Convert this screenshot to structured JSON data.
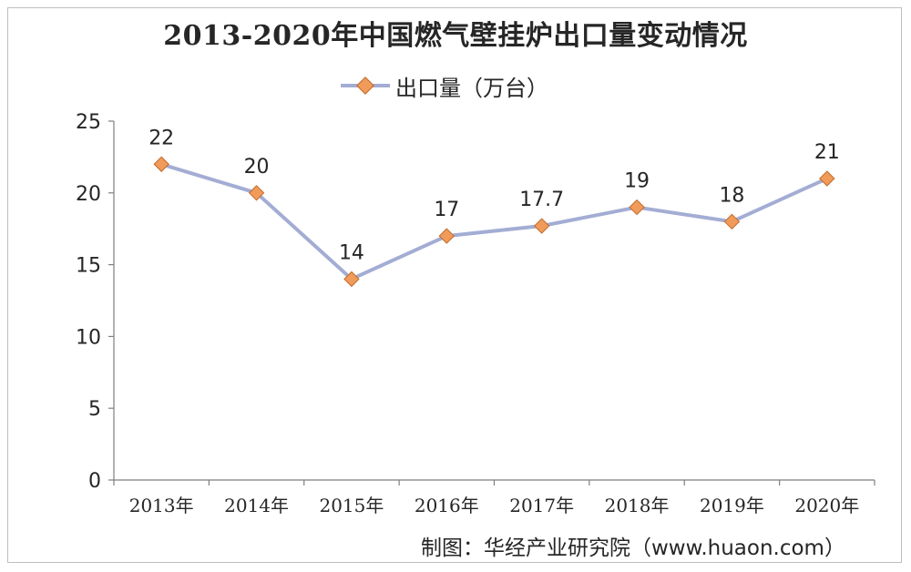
{
  "title": "2013-2020年中国燃气壁挂炉出口量变动情况",
  "source": "制图：华经产业研究院（www.huaon.com）",
  "colors": {
    "line": "#a3add4",
    "marker_fill": "#f09b59",
    "marker_stroke": "#c06a2a",
    "axis": "#7f7f7f"
  },
  "chart_data": {
    "type": "line",
    "title": "2013-2020年中国燃气壁挂炉出口量变动情况",
    "categories": [
      "2013年",
      "2014年",
      "2015年",
      "2016年",
      "2017年",
      "2018年",
      "2019年",
      "2020年"
    ],
    "series": [
      {
        "name": "出口量（万台）",
        "values": [
          22,
          20,
          14,
          17,
          17.7,
          19,
          18,
          21
        ]
      }
    ],
    "data_labels": [
      "22",
      "20",
      "14",
      "17",
      "17.7",
      "19",
      "18",
      "21"
    ],
    "y_ticks": [
      "0",
      "5",
      "10",
      "15",
      "20",
      "25"
    ],
    "ylim": [
      0,
      25
    ],
    "grid": false,
    "legend_position": "top",
    "xlabel": "",
    "ylabel": ""
  }
}
